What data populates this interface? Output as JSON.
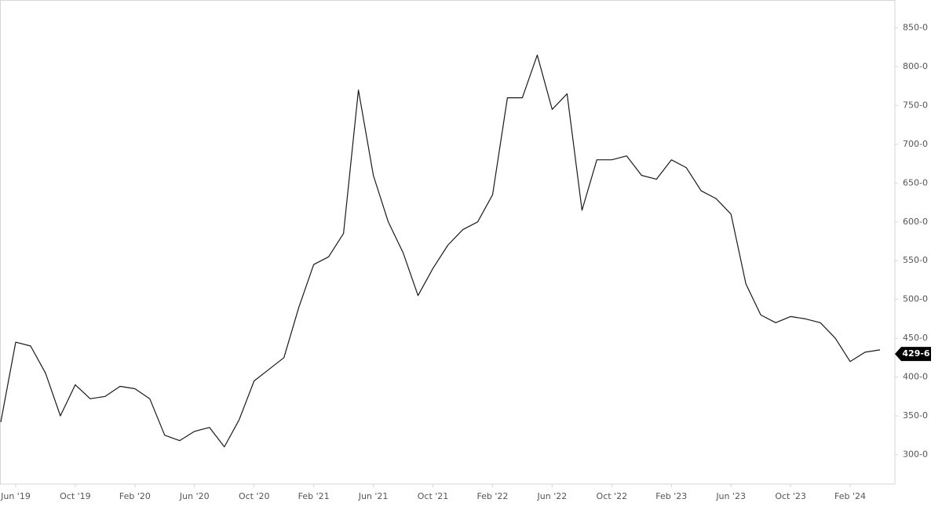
{
  "chart_data": {
    "type": "line",
    "x": [
      "2019-05",
      "2019-06",
      "2019-07",
      "2019-08",
      "2019-09",
      "2019-10",
      "2019-11",
      "2019-12",
      "2020-01",
      "2020-02",
      "2020-03",
      "2020-04",
      "2020-05",
      "2020-06",
      "2020-07",
      "2020-08",
      "2020-09",
      "2020-10",
      "2020-11",
      "2020-12",
      "2021-01",
      "2021-02",
      "2021-03",
      "2021-04",
      "2021-05",
      "2021-06",
      "2021-07",
      "2021-08",
      "2021-09",
      "2021-10",
      "2021-11",
      "2021-12",
      "2022-01",
      "2022-02",
      "2022-03",
      "2022-04",
      "2022-05",
      "2022-06",
      "2022-07",
      "2022-08",
      "2022-09",
      "2022-10",
      "2022-11",
      "2022-12",
      "2023-01",
      "2023-02",
      "2023-03",
      "2023-04",
      "2023-05",
      "2023-06",
      "2023-07",
      "2023-08",
      "2023-09",
      "2023-10",
      "2023-11",
      "2023-12",
      "2024-01",
      "2024-02",
      "2024-03",
      "2024-04"
    ],
    "series": [
      {
        "color": "#1a1a1a",
        "values": [
          342,
          445,
          440,
          405,
          350,
          390,
          372,
          375,
          388,
          385,
          372,
          325,
          318,
          330,
          335,
          310,
          345,
          395,
          410,
          425,
          490,
          545,
          555,
          585,
          770,
          660,
          600,
          560,
          505,
          540,
          570,
          590,
          600,
          635,
          760,
          760,
          815,
          745,
          765,
          615,
          680,
          680,
          685,
          660,
          655,
          680,
          670,
          640,
          630,
          610,
          520,
          480,
          470,
          478,
          475,
          470,
          450,
          420,
          432,
          435
        ]
      }
    ],
    "xlim": [
      "2019-05",
      "2024-05"
    ],
    "xticks": [
      {
        "value": "2019-06",
        "label": "Jun '19"
      },
      {
        "value": "2019-10",
        "label": "Oct '19"
      },
      {
        "value": "2020-02",
        "label": "Feb '20"
      },
      {
        "value": "2020-06",
        "label": "Jun '20"
      },
      {
        "value": "2020-10",
        "label": "Oct '20"
      },
      {
        "value": "2021-02",
        "label": "Feb '21"
      },
      {
        "value": "2021-06",
        "label": "Jun '21"
      },
      {
        "value": "2021-10",
        "label": "Oct '21"
      },
      {
        "value": "2022-02",
        "label": "Feb '22"
      },
      {
        "value": "2022-06",
        "label": "Jun '22"
      },
      {
        "value": "2022-10",
        "label": "Oct '22"
      },
      {
        "value": "2023-02",
        "label": "Feb '23"
      },
      {
        "value": "2023-06",
        "label": "Jun '23"
      },
      {
        "value": "2023-10",
        "label": "Oct '23"
      },
      {
        "value": "2024-02",
        "label": "Feb '24"
      }
    ],
    "ylim": [
      262,
      886
    ],
    "yticks": [
      {
        "value": 300,
        "label": "300-0"
      },
      {
        "value": 350,
        "label": "350-0"
      },
      {
        "value": 400,
        "label": "400-0"
      },
      {
        "value": 450,
        "label": "450-0"
      },
      {
        "value": 500,
        "label": "500-0"
      },
      {
        "value": 550,
        "label": "550-0"
      },
      {
        "value": 600,
        "label": "600-0"
      },
      {
        "value": 650,
        "label": "650-0"
      },
      {
        "value": 700,
        "label": "700-0"
      },
      {
        "value": 750,
        "label": "750-0"
      },
      {
        "value": 800,
        "label": "800-0"
      },
      {
        "value": 850,
        "label": "850-0"
      }
    ],
    "last_price": {
      "value": 429.75,
      "label": "429-6"
    }
  }
}
